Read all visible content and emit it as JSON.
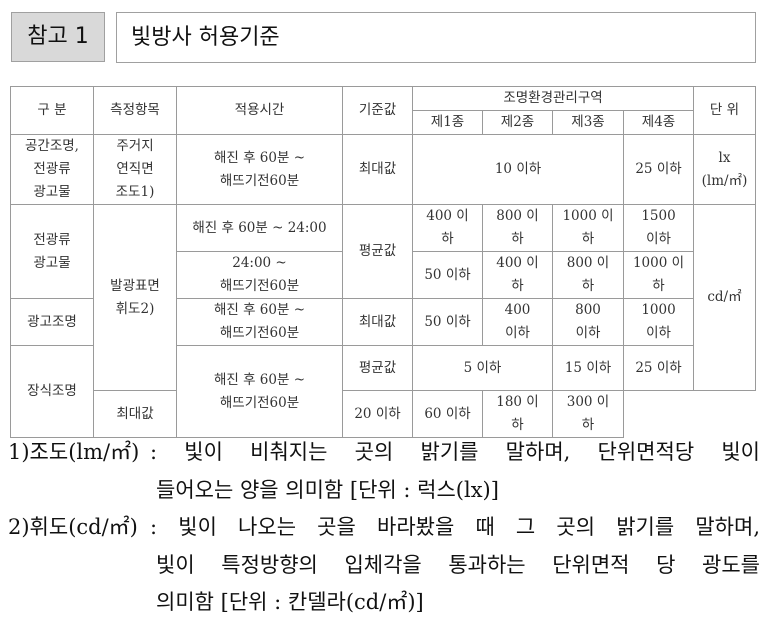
{
  "header": {
    "tag": "참고 1",
    "title": "빛방사 허용기준"
  },
  "table": {
    "headers": {
      "category": "구  분",
      "item": "측정항목",
      "time": "적용시간",
      "basis": "기준값",
      "zone": "조명환경관리구역",
      "zones": [
        "제1종",
        "제2종",
        "제3종",
        "제4종"
      ],
      "unit": "단 위"
    },
    "rows": {
      "r1": {
        "category": "공간조명,\n전광류\n광고물",
        "item": "주거지\n연직면\n조도1)",
        "time": "해진 후 60분 ~\n해뜨기전60분",
        "basis": "최대값",
        "z123": "10 이하",
        "z4": "25 이하",
        "unit": "lx\n(lm/㎡)"
      },
      "r2": {
        "category": "전광류\n광고물",
        "item": "발광표면\n휘도2)",
        "time_a": "해진 후 60분 ~ 24:00",
        "time_b": "24:00 ~\n해뜨기전60분",
        "basis": "평균값",
        "a": [
          "400 이\n하",
          "800 이\n하",
          "1000 이\n하",
          "1500\n이하"
        ],
        "b": [
          "50 이하",
          "400 이\n하",
          "800 이\n하",
          "1000 이\n하"
        ],
        "unit": "cd/㎡"
      },
      "r3": {
        "category": "광고조명",
        "time": "해진 후 60분 ~\n해뜨기전60분",
        "basis": "최대값",
        "values": [
          "50 이하",
          "400\n이하",
          "800\n이하",
          "1000\n이하"
        ]
      },
      "r4": {
        "category": "장식조명",
        "time": "해진 후 60분 ~\n해뜨기전60분",
        "basis_avg": "평균값",
        "avg_z12": "5 이하",
        "avg_z3": "15 이하",
        "avg_z4": "25 이하",
        "basis_max": "최대값",
        "max": [
          "20 이하",
          "60 이하",
          "180 이\n하",
          "300 이\n하"
        ]
      }
    }
  },
  "notes": [
    {
      "label": "1)조도(lm/㎡)",
      "lines": [
        ": 빛이 비춰지는 곳의 밝기를 말하며, 단위면적당 빛이",
        "들어오는 양을 의미함 [단위 : 럭스(lx)]"
      ]
    },
    {
      "label": "2)휘도(cd/㎡)",
      "lines": [
        ": 빛이 나오는 곳을 바라봤을 때 그 곳의 밝기를 말하며,",
        "빛이 특정방향의 입체각을 통과하는 단위면적 당 광도를",
        "의미함 [단위 : 칸델라(cd/㎡)]"
      ]
    }
  ]
}
